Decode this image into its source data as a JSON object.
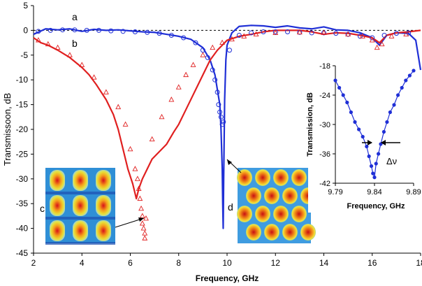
{
  "chart_data": [
    {
      "type": "line",
      "title": "",
      "xlabel": "Frequency, GHz",
      "ylabel": "Transmissoon, dB",
      "xlim": [
        2,
        18
      ],
      "ylim": [
        -45,
        5
      ],
      "x_ticks": [
        "2",
        "4",
        "6",
        "8",
        "10",
        "12",
        "14",
        "16",
        "18"
      ],
      "y_ticks": [
        "5",
        "0",
        "-5",
        "-10",
        "-15",
        "-20",
        "-25",
        "-30",
        "-35",
        "-40",
        "-45"
      ],
      "grid": false,
      "reference_line": {
        "y": 0,
        "style": "dashed",
        "color": "#000000"
      },
      "series": [
        {
          "name": "a",
          "style": "line",
          "color": "#1f2fd6",
          "x": [
            2.0,
            2.5,
            3.0,
            3.5,
            4.0,
            4.5,
            5.0,
            5.5,
            6.0,
            6.5,
            7.0,
            7.5,
            8.0,
            8.5,
            9.0,
            9.3,
            9.5,
            9.6,
            9.7,
            9.75,
            9.8,
            9.82,
            9.84,
            9.86,
            9.9,
            9.95,
            10.0,
            10.2,
            10.5,
            11.0,
            11.5,
            12.0,
            12.5,
            13.0,
            13.5,
            14.0,
            14.5,
            15.0,
            15.5,
            16.0,
            16.3,
            16.6,
            17.0,
            17.5,
            17.8,
            18.0
          ],
          "y": [
            -0.8,
            0.3,
            0.1,
            0.3,
            -0.2,
            0.2,
            0.0,
            0.1,
            -0.1,
            -0.3,
            -0.4,
            -0.8,
            -1.2,
            -1.8,
            -3.5,
            -6.0,
            -9.0,
            -12.0,
            -15.0,
            -20.0,
            -28.0,
            -35.0,
            -40.0,
            -30.0,
            -14.0,
            -6.0,
            -3.0,
            -0.5,
            0.8,
            1.0,
            0.9,
            0.6,
            0.9,
            0.5,
            0.3,
            0.7,
            0.1,
            0.0,
            -0.5,
            -1.5,
            -3.0,
            -1.0,
            -0.5,
            -0.6,
            -2.0,
            -8.0
          ]
        },
        {
          "name": "b",
          "style": "line",
          "color": "#e02020",
          "x": [
            2.0,
            2.3,
            2.6,
            3.0,
            3.5,
            4.0,
            4.3,
            4.6,
            5.0,
            5.3,
            5.5,
            5.7,
            5.9,
            6.1,
            6.25,
            6.35,
            6.5,
            6.7,
            6.9,
            7.2,
            7.5,
            7.8,
            8.0,
            8.3,
            8.6,
            9.0,
            9.3,
            9.6,
            9.8,
            10.0,
            10.5,
            11.0,
            11.5,
            12.0,
            12.5,
            13.0,
            13.5,
            14.0,
            14.5,
            15.0,
            15.5,
            16.0,
            16.3,
            16.6,
            17.0,
            17.5,
            18.0
          ],
          "y": [
            -1.5,
            -2.5,
            -3.0,
            -4.0,
            -5.5,
            -7.5,
            -9.0,
            -11.0,
            -14.0,
            -17.0,
            -20.0,
            -24.0,
            -28.0,
            -31.0,
            -34.0,
            -32.0,
            -30.0,
            -28.0,
            -26.0,
            -24.5,
            -23.0,
            -20.5,
            -19.0,
            -16.0,
            -13.0,
            -9.0,
            -6.0,
            -4.0,
            -3.0,
            -2.0,
            -1.2,
            -0.8,
            -0.3,
            0.0,
            0.0,
            0.0,
            -0.3,
            -0.8,
            -0.5,
            -0.6,
            -1.0,
            -1.5,
            -2.5,
            -1.0,
            -0.5,
            -0.3,
            0.0
          ]
        },
        {
          "name": "",
          "style": "circle-markers",
          "color": "#1f2fd6",
          "x": [
            2.2,
            2.7,
            3.2,
            3.7,
            4.2,
            4.7,
            5.2,
            5.7,
            6.2,
            6.7,
            7.2,
            7.7,
            8.2,
            8.7,
            9.0,
            9.2,
            9.4,
            9.5,
            9.6,
            9.65,
            9.7,
            9.75,
            9.8,
            9.85,
            10.1,
            10.5,
            11.0,
            11.5,
            12.0,
            12.5,
            13.0,
            13.5,
            14.0,
            14.5,
            15.0,
            15.5,
            16.0,
            16.5,
            17.0,
            17.5
          ],
          "y": [
            -0.2,
            0.0,
            0.1,
            0.1,
            0.0,
            0.0,
            -0.1,
            -0.2,
            -0.3,
            -0.4,
            -0.6,
            -1.0,
            -1.5,
            -2.5,
            -4.0,
            -5.5,
            -8.0,
            -10.0,
            -12.5,
            -15.0,
            -16.5,
            -17.5,
            -19.0,
            -18.5,
            -4.0,
            -1.0,
            -0.5,
            -0.3,
            -0.3,
            -0.3,
            -0.4,
            -0.5,
            -0.5,
            -0.6,
            -0.8,
            -1.2,
            -1.5,
            -1.0,
            -0.6,
            -0.5
          ]
        },
        {
          "name": "",
          "style": "triangle-markers",
          "color": "#e02020",
          "x": [
            2.2,
            2.6,
            3.0,
            3.5,
            4.0,
            4.5,
            5.0,
            5.5,
            5.8,
            6.0,
            6.2,
            6.3,
            6.35,
            6.4,
            6.45,
            6.5,
            6.5,
            6.55,
            6.6,
            6.6,
            6.65,
            6.9,
            7.3,
            7.7,
            8.0,
            8.3,
            8.6,
            9.0,
            9.4,
            9.8,
            10.2,
            10.7,
            11.2,
            12.0,
            13.0,
            14.0,
            15.0,
            15.6,
            16.0,
            16.2,
            16.4,
            16.8,
            17.4
          ],
          "y": [
            -2.0,
            -2.8,
            -3.5,
            -5.0,
            -7.0,
            -9.5,
            -12.5,
            -15.5,
            -19.0,
            -24.0,
            -28.0,
            -30.0,
            -32.0,
            -34.0,
            -36.0,
            -37.5,
            -39.0,
            -40.0,
            -41.0,
            -42.0,
            -38.0,
            -22.0,
            -17.5,
            -14.0,
            -11.5,
            -9.0,
            -7.0,
            -5.0,
            -3.5,
            -2.5,
            -1.8,
            -1.2,
            -0.8,
            -0.5,
            -0.4,
            -0.5,
            -0.8,
            -1.2,
            -2.0,
            -3.5,
            -2.8,
            -1.2,
            -0.8
          ]
        }
      ],
      "annotations": [
        "a",
        "b",
        "c",
        "d"
      ]
    },
    {
      "type": "line",
      "title": "",
      "xlabel": "Frequency, GHz",
      "ylabel": "Transmission, dB",
      "xlim": [
        9.79,
        9.89
      ],
      "ylim": [
        -42,
        -18
      ],
      "x_ticks": [
        "9.79",
        "9.84",
        "9.89"
      ],
      "y_ticks": [
        "-18",
        "-24",
        "-30",
        "-36",
        "-42"
      ],
      "grid": false,
      "annotation": "Δν",
      "series": [
        {
          "name": "",
          "style": "line+markers",
          "color": "#1f2fd6",
          "x": [
            9.79,
            9.795,
            9.8,
            9.805,
            9.81,
            9.815,
            9.82,
            9.825,
            9.83,
            9.833,
            9.836,
            9.838,
            9.84,
            9.842,
            9.845,
            9.848,
            9.852,
            9.856,
            9.86,
            9.865,
            9.87,
            9.875,
            9.88,
            9.885,
            9.89
          ],
          "y": [
            -21.0,
            -22.5,
            -24.0,
            -25.5,
            -27.5,
            -29.5,
            -31.0,
            -32.5,
            -34.5,
            -36.5,
            -38.5,
            -40.0,
            -40.8,
            -38.0,
            -36.0,
            -34.0,
            -31.5,
            -29.5,
            -27.5,
            -26.0,
            -24.0,
            -22.5,
            -21.0,
            -20.0,
            -19.0
          ]
        }
      ]
    }
  ]
}
